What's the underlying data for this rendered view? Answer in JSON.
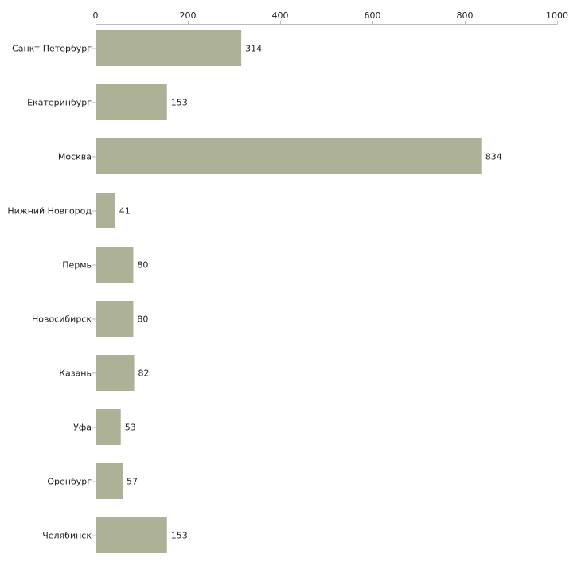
{
  "chart_data": {
    "type": "bar",
    "orientation": "horizontal",
    "title": "",
    "xlabel": "",
    "ylabel": "",
    "xlim": [
      0,
      1000
    ],
    "x_ticks": [
      0,
      200,
      400,
      600,
      800,
      1000
    ],
    "x_tick_labels": [
      "0",
      "200",
      "400",
      "600",
      "800",
      "1000"
    ],
    "x_axis_position": "top",
    "grid": false,
    "legend": "none",
    "bar_color": "#adb196",
    "categories": [
      "Санкт-Петербург",
      "Екатеринбург",
      "Москва",
      "Нижний Новгород",
      "Пермь",
      "Новосибирск",
      "Казань",
      "Уфа",
      "Оренбург",
      "Челябинск"
    ],
    "values": [
      314,
      153,
      834,
      41,
      80,
      80,
      82,
      53,
      57,
      153
    ],
    "value_labels": [
      "314",
      "153",
      "834",
      "41",
      "80",
      "80",
      "82",
      "53",
      "57",
      "153"
    ]
  }
}
